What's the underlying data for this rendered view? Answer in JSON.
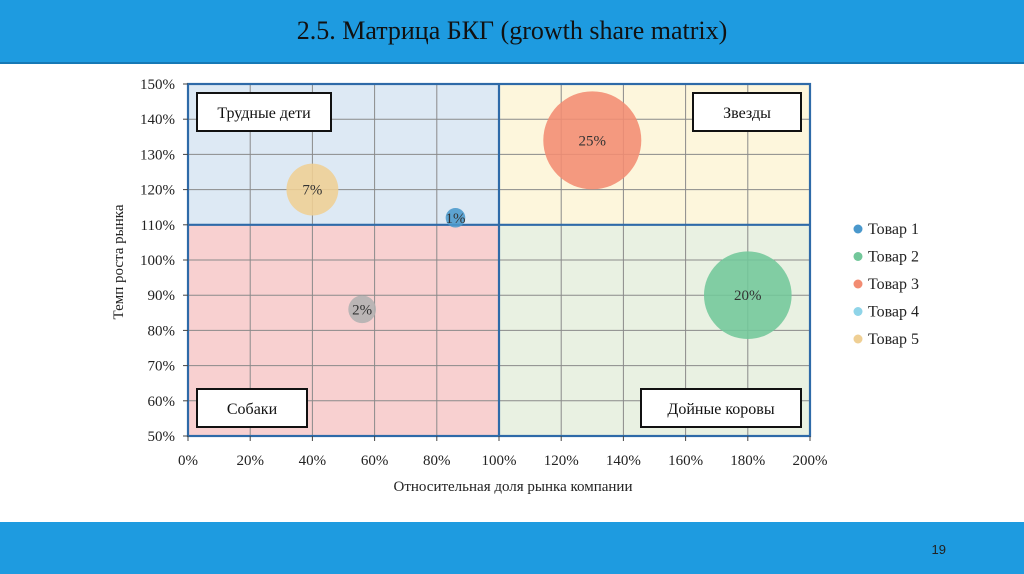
{
  "header": {
    "title": "2.5. Матрица БКГ (growth share matrix)"
  },
  "footer": {
    "page_number": "19"
  },
  "chart_data": {
    "type": "scatter",
    "variant": "bubble",
    "xlabel": "Относительная доля рынка компании",
    "ylabel": "Темп роста рынка",
    "xlim": [
      0,
      200
    ],
    "ylim": [
      50,
      150
    ],
    "x_ticks": [
      0,
      20,
      40,
      60,
      80,
      100,
      120,
      140,
      160,
      180,
      200
    ],
    "x_tick_labels": [
      "0%",
      "20%",
      "40%",
      "60%",
      "80%",
      "100%",
      "120%",
      "140%",
      "160%",
      "180%",
      "200%"
    ],
    "y_ticks": [
      50,
      60,
      70,
      80,
      90,
      100,
      110,
      120,
      130,
      140,
      150
    ],
    "y_tick_labels": [
      "50%",
      "60%",
      "70%",
      "80%",
      "90%",
      "100%",
      "110%",
      "120%",
      "130%",
      "140%",
      "150%"
    ],
    "grid": true,
    "legend_position": "right",
    "dividers": {
      "x": 100,
      "y": 110
    },
    "quadrants": [
      {
        "label": "Трудные дети",
        "x_range": [
          0,
          100
        ],
        "y_range": [
          110,
          150
        ],
        "color": "#dde9f4",
        "label_corner": "top-left"
      },
      {
        "label": "Звезды",
        "x_range": [
          100,
          200
        ],
        "y_range": [
          110,
          150
        ],
        "color": "#fdf6dc",
        "label_corner": "top-right"
      },
      {
        "label": "Собаки",
        "x_range": [
          0,
          100
        ],
        "y_range": [
          50,
          110
        ],
        "color": "#f8d0d0",
        "label_corner": "bottom-left"
      },
      {
        "label": "Дойные коровы",
        "x_range": [
          100,
          200
        ],
        "y_range": [
          50,
          110
        ],
        "color": "#e9f1e2",
        "label_corner": "bottom-right"
      }
    ],
    "series": [
      {
        "name": "Товар 1",
        "x": 86,
        "y": 112,
        "size": 1,
        "label": "1%",
        "color": "#4a98cc"
      },
      {
        "name": "Товар 2",
        "x": 180,
        "y": 90,
        "size": 20,
        "label": "20%",
        "color": "#72c79a"
      },
      {
        "name": "Товар 3",
        "x": 130,
        "y": 134,
        "size": 25,
        "label": "25%",
        "color": "#f28c72"
      },
      {
        "name": "Товар 4",
        "x": 56,
        "y": 86,
        "size": 2,
        "label": "2%",
        "color": "#b0b0b0",
        "legend_color": "#8fd4e8"
      },
      {
        "name": "Товар 5",
        "x": 40,
        "y": 120,
        "size": 7,
        "label": "7%",
        "color": "#efcf94"
      }
    ]
  }
}
